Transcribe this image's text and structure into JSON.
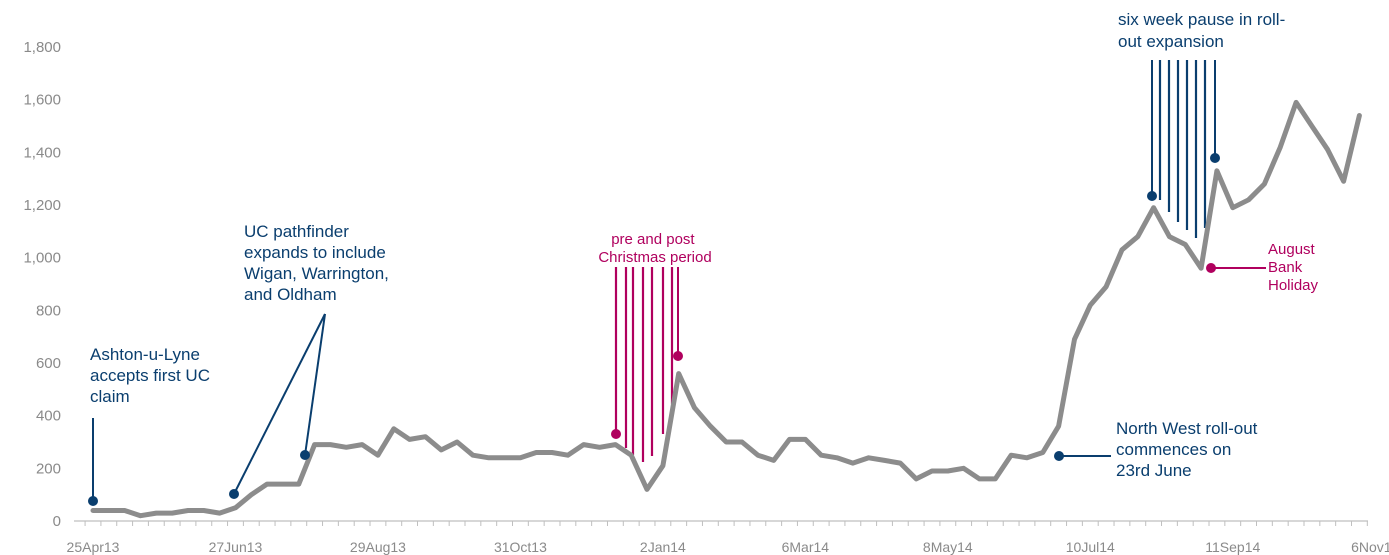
{
  "colors": {
    "line": "#8c8c8c",
    "blue": "#0a3e6e",
    "pink": "#b0005e",
    "axis": "#bfbfbf",
    "tick_text": "#8a8a8a"
  },
  "chart_data": {
    "type": "line",
    "title": "",
    "xlabel": "",
    "ylabel": "",
    "ylim": [
      0,
      1800
    ],
    "yticks": [
      0,
      200,
      400,
      600,
      800,
      1000,
      1200,
      1400,
      1600,
      1800
    ],
    "ytick_labels": [
      "0",
      "200",
      "400",
      "600",
      "800",
      "1,000",
      "1,200",
      "1,400",
      "1,600",
      "1,800"
    ],
    "xtick_labels": [
      "25Apr13",
      "27Jun13",
      "29Aug13",
      "31Oct13",
      "2Jan14",
      "6Mar14",
      "8May14",
      "10Jul14",
      "11Sep14",
      "6Nov14"
    ],
    "grid": false,
    "legend": "none",
    "series": [
      {
        "values": [
          40,
          40,
          40,
          20,
          30,
          30,
          40,
          40,
          30,
          50,
          100,
          140,
          140,
          140,
          290,
          290,
          280,
          290,
          250,
          350,
          310,
          320,
          270,
          300,
          250,
          240,
          240,
          240,
          260,
          260,
          250,
          290,
          280,
          290,
          250,
          120,
          210,
          560,
          430,
          360,
          300,
          300,
          250,
          230,
          310,
          310,
          250,
          240,
          220,
          240,
          230,
          220,
          160,
          190,
          190,
          200,
          160,
          160,
          250,
          240,
          260,
          360,
          690,
          820,
          890,
          1030,
          1080,
          1190,
          1080,
          1050,
          960,
          1330,
          1190,
          1220,
          1280,
          1420,
          1590,
          1500,
          1410,
          1290,
          1540
        ]
      }
    ],
    "annotations": [
      {
        "id": "ashton",
        "lines": [
          "Ashton-u-Lyne",
          "accepts first UC",
          "claim"
        ]
      },
      {
        "id": "pathfinder",
        "lines": [
          "UC pathfinder",
          "expands to include",
          "Wigan, Warrington,",
          "and Oldham"
        ]
      },
      {
        "id": "christmas",
        "lines": [
          "pre and post",
          "Christmas period"
        ]
      },
      {
        "id": "northwest",
        "lines": [
          "North West roll-out",
          "commences on",
          "23rd June"
        ]
      },
      {
        "id": "pause",
        "lines": [
          "six week pause in roll-",
          "out expansion"
        ]
      },
      {
        "id": "bankholiday",
        "lines": [
          "August",
          "Bank",
          "Holiday"
        ]
      }
    ]
  }
}
